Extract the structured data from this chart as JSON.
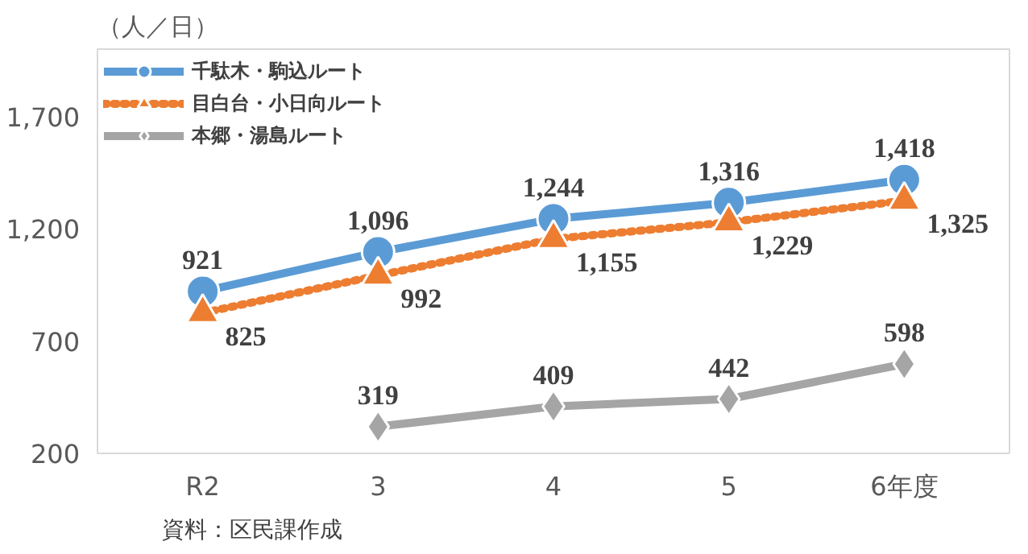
{
  "chart_data": {
    "type": "line",
    "ylabel": "（人／日）",
    "annotations": [
      "資料：区民課作成"
    ],
    "categories": [
      "R2",
      "3",
      "4",
      "5",
      "6年度"
    ],
    "series": [
      {
        "name": "千駄木・駒込ルート",
        "color": "#5b9bd5",
        "values": [
          921,
          1096,
          1244,
          1316,
          1418
        ],
        "value_labels": [
          "921",
          "1,096",
          "1,244",
          "1,316",
          "1,418"
        ],
        "marker": "circle",
        "line_style": "solid"
      },
      {
        "name": "目白台・小日向ルート",
        "color": "#ed7d31",
        "values": [
          825,
          992,
          1155,
          1229,
          1325
        ],
        "value_labels": [
          "825",
          "992",
          "1,155",
          "1,229",
          "1,325"
        ],
        "marker": "triangle",
        "line_style": "dotted"
      },
      {
        "name": "本郷・湯島ルート",
        "color": "#a5a5a5",
        "values": [
          null,
          319,
          409,
          442,
          598
        ],
        "value_labels": [
          null,
          "319",
          "409",
          "442",
          "598"
        ],
        "marker": "diamond",
        "line_style": "solid"
      }
    ],
    "ylim": [
      200,
      2000
    ],
    "yticks": [
      200,
      700,
      {
        "value": 1200,
        "label": "1,200"
      },
      {
        "value": 1700,
        "label": "1,700"
      }
    ],
    "grid": false,
    "legend": "top left"
  }
}
